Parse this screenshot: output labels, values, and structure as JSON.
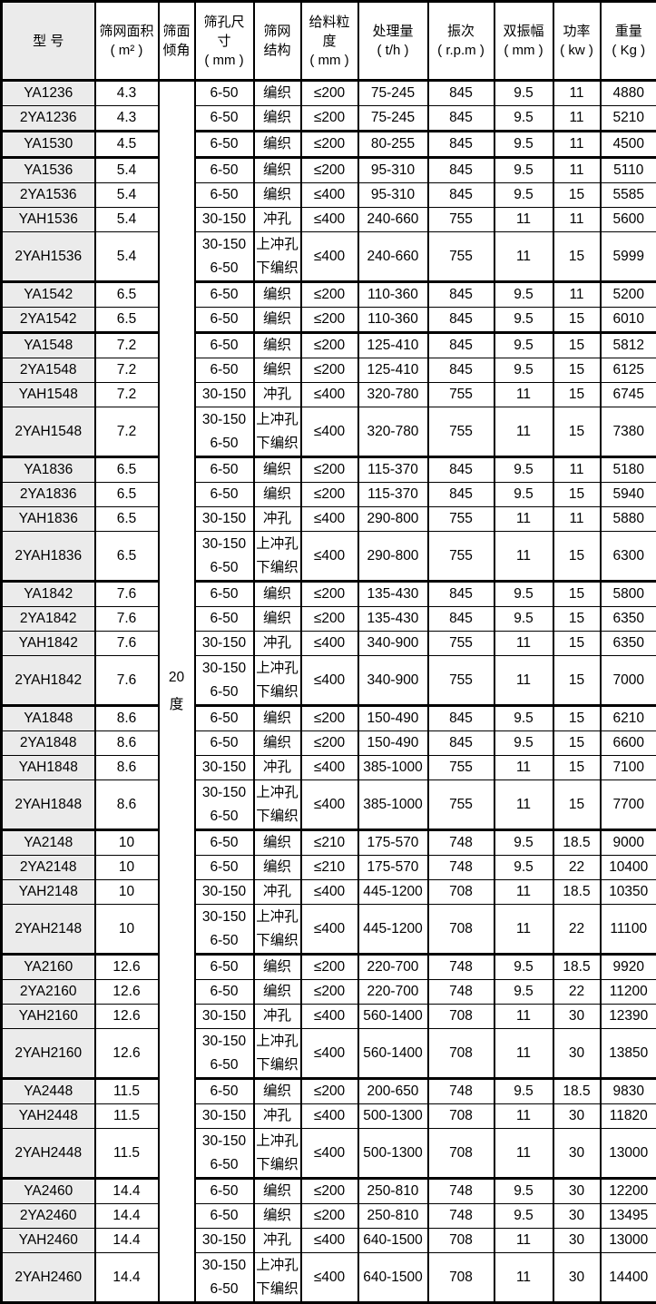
{
  "colors": {
    "model_column_bg": "#ebebeb",
    "border": "#000000",
    "text": "#000000",
    "background": "#ffffff"
  },
  "table": {
    "columns": [
      {
        "key": "model",
        "label": "型  号"
      },
      {
        "key": "area",
        "label": "筛网面积\n( m² )"
      },
      {
        "key": "incline",
        "label": "筛面\n倾角"
      },
      {
        "key": "mesh",
        "label": "筛孔尺\n寸\n( mm )"
      },
      {
        "key": "structure",
        "label": "筛网\n结构"
      },
      {
        "key": "feed",
        "label": "给料粒\n度\n( mm )"
      },
      {
        "key": "capacity",
        "label": "处理量\n( t/h )"
      },
      {
        "key": "frequency",
        "label": "振次\n( r.p.m )"
      },
      {
        "key": "amplitude",
        "label": "双振幅\n( mm )"
      },
      {
        "key": "power",
        "label": "功率\n( kw )"
      },
      {
        "key": "weight",
        "label": "重量\n( Kg )"
      }
    ],
    "incline_value": "20\n度",
    "rows": [
      {
        "model": "YA1236",
        "area": "4.3",
        "mesh": "6-50",
        "structure": "编织",
        "feed": "≤200",
        "capacity": "75-245",
        "frequency": "845",
        "amplitude": "9.5",
        "power": "11",
        "weight": "4880",
        "group_start": true,
        "tall": false
      },
      {
        "model": "2YA1236",
        "area": "4.3",
        "mesh": "6-50",
        "structure": "编织",
        "feed": "≤200",
        "capacity": "75-245",
        "frequency": "845",
        "amplitude": "9.5",
        "power": "11",
        "weight": "5210",
        "group_start": false,
        "tall": false
      },
      {
        "model": "YA1530",
        "area": "4.5",
        "mesh": "6-50",
        "structure": "编织",
        "feed": "≤200",
        "capacity": "80-255",
        "frequency": "845",
        "amplitude": "9.5",
        "power": "11",
        "weight": "4500",
        "group_start": true,
        "tall": false
      },
      {
        "model": "YA1536",
        "area": "5.4",
        "mesh": "6-50",
        "structure": "编织",
        "feed": "≤200",
        "capacity": "95-310",
        "frequency": "845",
        "amplitude": "9.5",
        "power": "11",
        "weight": "5110",
        "group_start": true,
        "tall": false
      },
      {
        "model": "2YA1536",
        "area": "5.4",
        "mesh": "6-50",
        "structure": "编织",
        "feed": "≤400",
        "capacity": "95-310",
        "frequency": "845",
        "amplitude": "9.5",
        "power": "15",
        "weight": "5585",
        "group_start": false,
        "tall": false
      },
      {
        "model": "YAH1536",
        "area": "5.4",
        "mesh": "30-150",
        "structure": "冲孔",
        "feed": "≤400",
        "capacity": "240-660",
        "frequency": "755",
        "amplitude": "11",
        "power": "11",
        "weight": "5600",
        "group_start": false,
        "tall": false
      },
      {
        "model": "2YAH1536",
        "area": "5.4",
        "mesh": "30-150\n6-50",
        "structure": "上冲孔\n下编织",
        "feed": "≤400",
        "capacity": "240-660",
        "frequency": "755",
        "amplitude": "11",
        "power": "15",
        "weight": "5999",
        "group_start": false,
        "tall": true
      },
      {
        "model": "YA1542",
        "area": "6.5",
        "mesh": "6-50",
        "structure": "编织",
        "feed": "≤200",
        "capacity": "110-360",
        "frequency": "845",
        "amplitude": "9.5",
        "power": "11",
        "weight": "5200",
        "group_start": true,
        "tall": false
      },
      {
        "model": "2YA1542",
        "area": "6.5",
        "mesh": "6-50",
        "structure": "编织",
        "feed": "≤200",
        "capacity": "110-360",
        "frequency": "845",
        "amplitude": "9.5",
        "power": "15",
        "weight": "6010",
        "group_start": false,
        "tall": false
      },
      {
        "model": "YA1548",
        "area": "7.2",
        "mesh": "6-50",
        "structure": "编织",
        "feed": "≤200",
        "capacity": "125-410",
        "frequency": "845",
        "amplitude": "9.5",
        "power": "15",
        "weight": "5812",
        "group_start": true,
        "tall": false
      },
      {
        "model": "2YA1548",
        "area": "7.2",
        "mesh": "6-50",
        "structure": "编织",
        "feed": "≤200",
        "capacity": "125-410",
        "frequency": "845",
        "amplitude": "9.5",
        "power": "15",
        "weight": "6125",
        "group_start": false,
        "tall": false
      },
      {
        "model": "YAH1548",
        "area": "7.2",
        "mesh": "30-150",
        "structure": "冲孔",
        "feed": "≤400",
        "capacity": "320-780",
        "frequency": "755",
        "amplitude": "11",
        "power": "15",
        "weight": "6745",
        "group_start": false,
        "tall": false
      },
      {
        "model": "2YAH1548",
        "area": "7.2",
        "mesh": "30-150\n6-50",
        "structure": "上冲孔\n下编织",
        "feed": "≤400",
        "capacity": "320-780",
        "frequency": "755",
        "amplitude": "11",
        "power": "15",
        "weight": "7380",
        "group_start": false,
        "tall": true
      },
      {
        "model": "YA1836",
        "area": "6.5",
        "mesh": "6-50",
        "structure": "编织",
        "feed": "≤200",
        "capacity": "115-370",
        "frequency": "845",
        "amplitude": "9.5",
        "power": "11",
        "weight": "5180",
        "group_start": true,
        "tall": false
      },
      {
        "model": "2YA1836",
        "area": "6.5",
        "mesh": "6-50",
        "structure": "编织",
        "feed": "≤200",
        "capacity": "115-370",
        "frequency": "845",
        "amplitude": "9.5",
        "power": "15",
        "weight": "5940",
        "group_start": false,
        "tall": false
      },
      {
        "model": "YAH1836",
        "area": "6.5",
        "mesh": "30-150",
        "structure": "冲孔",
        "feed": "≤400",
        "capacity": "290-800",
        "frequency": "755",
        "amplitude": "11",
        "power": "11",
        "weight": "5880",
        "group_start": false,
        "tall": false
      },
      {
        "model": "2YAH1836",
        "area": "6.5",
        "mesh": "30-150\n6-50",
        "structure": "上冲孔\n下编织",
        "feed": "≤400",
        "capacity": "290-800",
        "frequency": "755",
        "amplitude": "11",
        "power": "15",
        "weight": "6300",
        "group_start": false,
        "tall": true
      },
      {
        "model": "YA1842",
        "area": "7.6",
        "mesh": "6-50",
        "structure": "编织",
        "feed": "≤200",
        "capacity": "135-430",
        "frequency": "845",
        "amplitude": "9.5",
        "power": "15",
        "weight": "5800",
        "group_start": true,
        "tall": false
      },
      {
        "model": "2YA1842",
        "area": "7.6",
        "mesh": "6-50",
        "structure": "编织",
        "feed": "≤200",
        "capacity": "135-430",
        "frequency": "845",
        "amplitude": "9.5",
        "power": "15",
        "weight": "6350",
        "group_start": false,
        "tall": false
      },
      {
        "model": "YAH1842",
        "area": "7.6",
        "mesh": "30-150",
        "structure": "冲孔",
        "feed": "≤400",
        "capacity": "340-900",
        "frequency": "755",
        "amplitude": "11",
        "power": "15",
        "weight": "6350",
        "group_start": false,
        "tall": false
      },
      {
        "model": "2YAH1842",
        "area": "7.6",
        "mesh": "30-150\n6-50",
        "structure": "上冲孔\n下编织",
        "feed": "≤400",
        "capacity": "340-900",
        "frequency": "755",
        "amplitude": "11",
        "power": "15",
        "weight": "7000",
        "group_start": false,
        "tall": true
      },
      {
        "model": "YA1848",
        "area": "8.6",
        "mesh": "6-50",
        "structure": "编织",
        "feed": "≤200",
        "capacity": "150-490",
        "frequency": "845",
        "amplitude": "9.5",
        "power": "15",
        "weight": "6210",
        "group_start": true,
        "tall": false
      },
      {
        "model": "2YA1848",
        "area": "8.6",
        "mesh": "6-50",
        "structure": "编织",
        "feed": "≤200",
        "capacity": "150-490",
        "frequency": "845",
        "amplitude": "9.5",
        "power": "15",
        "weight": "6600",
        "group_start": false,
        "tall": false
      },
      {
        "model": "YAH1848",
        "area": "8.6",
        "mesh": "30-150",
        "structure": "冲孔",
        "feed": "≤400",
        "capacity": "385-1000",
        "frequency": "755",
        "amplitude": "11",
        "power": "15",
        "weight": "7100",
        "group_start": false,
        "tall": false
      },
      {
        "model": "2YAH1848",
        "area": "8.6",
        "mesh": "30-150\n6-50",
        "structure": "上冲孔\n下编织",
        "feed": "≤400",
        "capacity": "385-1000",
        "frequency": "755",
        "amplitude": "11",
        "power": "15",
        "weight": "7700",
        "group_start": false,
        "tall": true
      },
      {
        "model": "YA2148",
        "area": "10",
        "mesh": "6-50",
        "structure": "编织",
        "feed": "≤210",
        "capacity": "175-570",
        "frequency": "748",
        "amplitude": "9.5",
        "power": "18.5",
        "weight": "9000",
        "group_start": true,
        "tall": false
      },
      {
        "model": "2YA2148",
        "area": "10",
        "mesh": "6-50",
        "structure": "编织",
        "feed": "≤210",
        "capacity": "175-570",
        "frequency": "748",
        "amplitude": "9.5",
        "power": "22",
        "weight": "10400",
        "group_start": false,
        "tall": false
      },
      {
        "model": "YAH2148",
        "area": "10",
        "mesh": "30-150",
        "structure": "冲孔",
        "feed": "≤400",
        "capacity": "445-1200",
        "frequency": "708",
        "amplitude": "11",
        "power": "18.5",
        "weight": "10350",
        "group_start": false,
        "tall": false
      },
      {
        "model": "2YAH2148",
        "area": "10",
        "mesh": "30-150\n6-50",
        "structure": "上冲孔\n下编织",
        "feed": "≤400",
        "capacity": "445-1200",
        "frequency": "708",
        "amplitude": "11",
        "power": "22",
        "weight": "11100",
        "group_start": false,
        "tall": true
      },
      {
        "model": "YA2160",
        "area": "12.6",
        "mesh": "6-50",
        "structure": "编织",
        "feed": "≤200",
        "capacity": "220-700",
        "frequency": "748",
        "amplitude": "9.5",
        "power": "18.5",
        "weight": "9920",
        "group_start": true,
        "tall": false
      },
      {
        "model": "2YA2160",
        "area": "12.6",
        "mesh": "6-50",
        "structure": "编织",
        "feed": "≤200",
        "capacity": "220-700",
        "frequency": "748",
        "amplitude": "9.5",
        "power": "22",
        "weight": "11200",
        "group_start": false,
        "tall": false
      },
      {
        "model": "YAH2160",
        "area": "12.6",
        "mesh": "30-150",
        "structure": "冲孔",
        "feed": "≤400",
        "capacity": "560-1400",
        "frequency": "708",
        "amplitude": "11",
        "power": "30",
        "weight": "12390",
        "group_start": false,
        "tall": false
      },
      {
        "model": "2YAH2160",
        "area": "12.6",
        "mesh": "30-150\n6-50",
        "structure": "上冲孔\n下编织",
        "feed": "≤400",
        "capacity": "560-1400",
        "frequency": "708",
        "amplitude": "11",
        "power": "30",
        "weight": "13850",
        "group_start": false,
        "tall": true
      },
      {
        "model": "YA2448",
        "area": "11.5",
        "mesh": "6-50",
        "structure": "编织",
        "feed": "≤200",
        "capacity": "200-650",
        "frequency": "748",
        "amplitude": "9.5",
        "power": "18.5",
        "weight": "9830",
        "group_start": true,
        "tall": false
      },
      {
        "model": "YAH2448",
        "area": "11.5",
        "mesh": "30-150",
        "structure": "冲孔",
        "feed": "≤400",
        "capacity": "500-1300",
        "frequency": "708",
        "amplitude": "11",
        "power": "30",
        "weight": "11820",
        "group_start": false,
        "tall": false
      },
      {
        "model": "2YAH2448",
        "area": "11.5",
        "mesh": "30-150\n6-50",
        "structure": "上冲孔\n下编织",
        "feed": "≤400",
        "capacity": "500-1300",
        "frequency": "708",
        "amplitude": "11",
        "power": "30",
        "weight": "13000",
        "group_start": false,
        "tall": true
      },
      {
        "model": "YA2460",
        "area": "14.4",
        "mesh": "6-50",
        "structure": "编织",
        "feed": "≤200",
        "capacity": "250-810",
        "frequency": "748",
        "amplitude": "9.5",
        "power": "30",
        "weight": "12200",
        "group_start": true,
        "tall": false
      },
      {
        "model": "2YA2460",
        "area": "14.4",
        "mesh": "6-50",
        "structure": "编织",
        "feed": "≤200",
        "capacity": "250-810",
        "frequency": "748",
        "amplitude": "9.5",
        "power": "30",
        "weight": "13495",
        "group_start": false,
        "tall": false
      },
      {
        "model": "YAH2460",
        "area": "14.4",
        "mesh": "30-150",
        "structure": "冲孔",
        "feed": "≤400",
        "capacity": "640-1500",
        "frequency": "708",
        "amplitude": "11",
        "power": "30",
        "weight": "13000",
        "group_start": false,
        "tall": false
      },
      {
        "model": "2YAH2460",
        "area": "14.4",
        "mesh": "30-150\n6-50",
        "structure": "上冲孔\n下编织",
        "feed": "≤400",
        "capacity": "640-1500",
        "frequency": "708",
        "amplitude": "11",
        "power": "30",
        "weight": "14400",
        "group_start": false,
        "tall": true
      }
    ]
  }
}
